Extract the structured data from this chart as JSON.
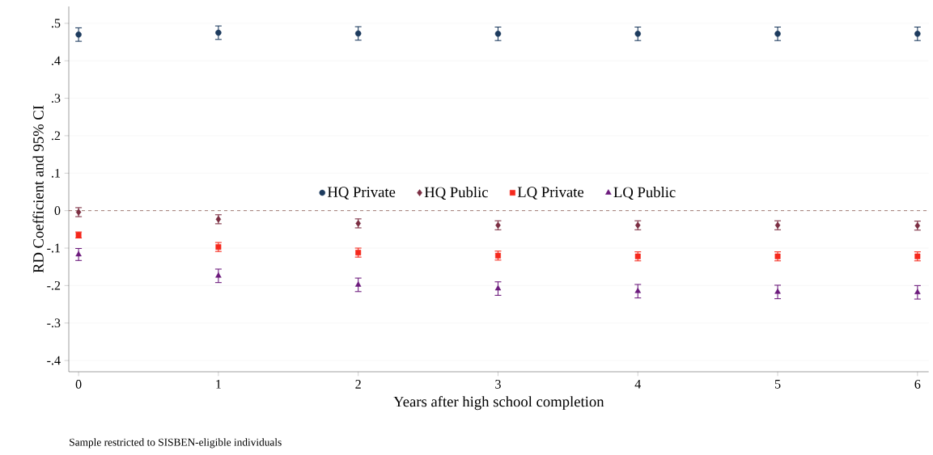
{
  "chart_data": {
    "type": "scatter",
    "xlabel": "Years after high school completion",
    "ylabel": "RD Coefficient and 95% CI",
    "x": [
      0,
      1,
      2,
      3,
      4,
      5,
      6
    ],
    "series": [
      {
        "name": "HQ Private",
        "color": "#1d3b5e",
        "marker": "circle",
        "values": [
          0.47,
          0.475,
          0.473,
          0.472,
          0.472,
          0.472,
          0.472
        ],
        "errors": [
          0.018,
          0.018,
          0.018,
          0.018,
          0.018,
          0.018,
          0.018
        ]
      },
      {
        "name": "HQ Public",
        "color": "#7b2e42",
        "marker": "diamond",
        "values": [
          -0.004,
          -0.023,
          -0.034,
          -0.039,
          -0.039,
          -0.039,
          -0.04
        ],
        "errors": [
          0.012,
          0.012,
          0.012,
          0.012,
          0.012,
          0.012,
          0.012
        ]
      },
      {
        "name": "LQ Private",
        "color": "#f5281c",
        "marker": "square",
        "values": [
          -0.065,
          -0.097,
          -0.112,
          -0.12,
          -0.122,
          -0.122,
          -0.122
        ],
        "errors": [
          0.008,
          0.012,
          0.012,
          0.012,
          0.012,
          0.012,
          0.012
        ]
      },
      {
        "name": "LQ Public",
        "color": "#6c1a7c",
        "marker": "triangle",
        "values": [
          -0.117,
          -0.174,
          -0.198,
          -0.208,
          -0.215,
          -0.217,
          -0.218
        ],
        "errors": [
          0.016,
          0.018,
          0.018,
          0.018,
          0.018,
          0.018,
          0.018
        ]
      }
    ],
    "xlim": [
      -0.07,
      6.08
    ],
    "ylim": [
      -0.43,
      0.545
    ],
    "xticks": [
      0,
      1,
      2,
      3,
      4,
      5,
      6
    ],
    "yticks": [
      {
        "value": -0.4,
        "label": "-.4"
      },
      {
        "value": -0.3,
        "label": "-.3"
      },
      {
        "value": -0.2,
        "label": "-.2"
      },
      {
        "value": -0.1,
        "label": "-.1"
      },
      0,
      {
        "value": 0.1,
        "label": ".1"
      },
      {
        "value": 0.2,
        "label": ".2"
      },
      {
        "value": 0.3,
        "label": ".3"
      },
      {
        "value": 0.4,
        "label": ".4"
      },
      {
        "value": 0.5,
        "label": ".5"
      }
    ],
    "ref_lines": [
      {
        "axis": "y",
        "value": 0,
        "color": "#8a5a50",
        "line_style": "dashed"
      }
    ],
    "grid": "y",
    "legend": "center",
    "annotations": [
      "Sample restricted to SISBEN-eligible individuals"
    ]
  }
}
